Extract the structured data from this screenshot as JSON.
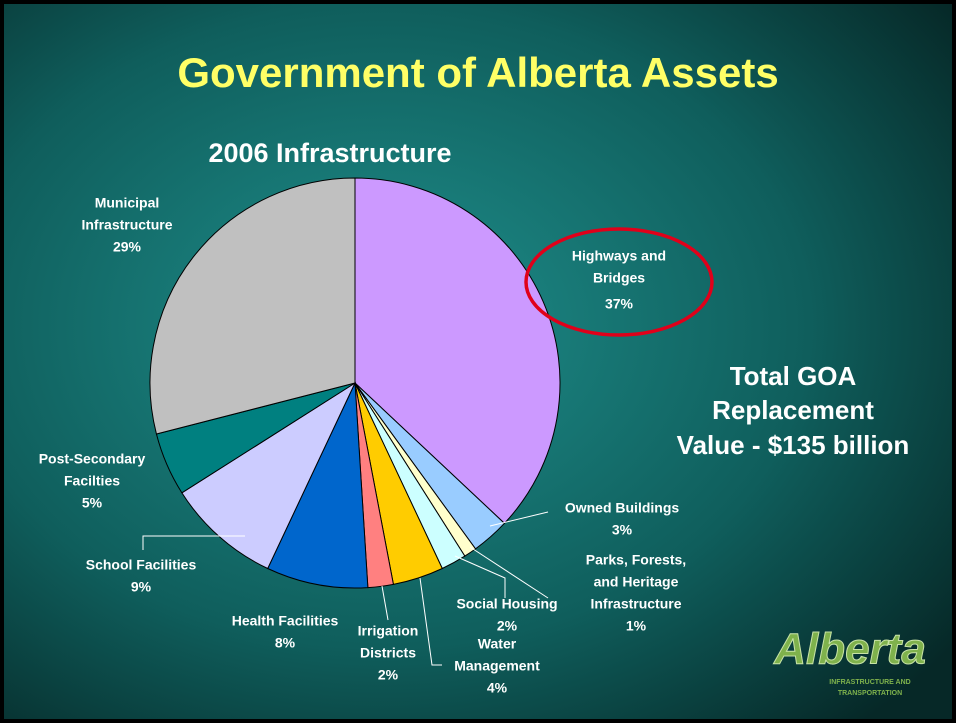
{
  "chart_data": {
    "type": "pie",
    "title": "Government of Alberta Assets",
    "subtitle": "2006 Infrastructure",
    "annotation": [
      "Total GOA",
      "Replacement",
      "Value - $135 billion"
    ],
    "logo": {
      "name": "Alberta",
      "tagline": [
        "INFRASTRUCTURE AND",
        "TRANSPORTATION"
      ]
    },
    "categories": [
      [
        "Highways and",
        "Bridges"
      ],
      [
        "Owned Buildings"
      ],
      [
        "Parks, Forests,",
        "and Heritage",
        "Infrastructure"
      ],
      [
        "Social Housing"
      ],
      [
        "Water",
        "Management"
      ],
      [
        "Irrigation",
        "Districts"
      ],
      [
        "Health Facilities"
      ],
      [
        "School Facilities"
      ],
      [
        "Post-Secondary",
        "Facilties"
      ],
      [
        "Municipal",
        "Infrastructure"
      ]
    ],
    "values": [
      37,
      3,
      1,
      2,
      4,
      2,
      8,
      9,
      5,
      29
    ],
    "value_labels": [
      "37%",
      "3%",
      "1%",
      "2%",
      "4%",
      "2%",
      "8%",
      "9%",
      "5%",
      "29%"
    ],
    "colors": [
      "#cc99ff",
      "#99ccff",
      "#ffffcc",
      "#ccffff",
      "#ffcc00",
      "#ff8080",
      "#0066cc",
      "#ccccff",
      "#008080",
      "#c0c0c0"
    ]
  }
}
